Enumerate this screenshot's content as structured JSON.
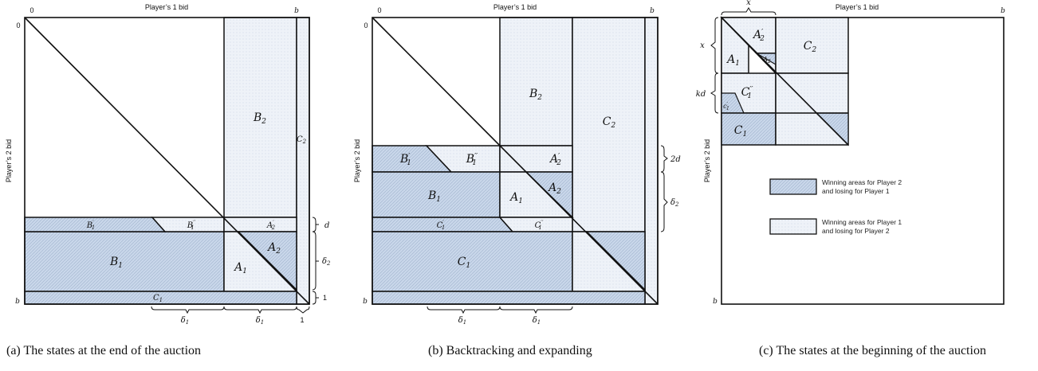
{
  "panels": [
    {
      "caption": "(a) The states at the end of the auction",
      "x_axis_label": "Player’s 1 bid",
      "y_axis_label": "Player’s 2 bid",
      "corner_zero_top": "0",
      "corner_b_top": "b",
      "corner_zero_left": "0",
      "corner_b_left": "b",
      "regions": {
        "B2": "B",
        "C2": "C",
        "B1p": "B",
        "B1pp": "B",
        "A2p": "A",
        "B1": "B",
        "A1": "A",
        "A2": "A",
        "C1": "C"
      },
      "subscripts": {
        "B2": "2",
        "C2": "2",
        "B1p": "1",
        "B1pp": "1",
        "A2p": "2",
        "B1": "1",
        "A1": "1",
        "A2": "2",
        "C1": "1"
      },
      "primes": {
        "B1p": "′",
        "B1pp": "′′",
        "A2p": "′"
      },
      "brace_labels": {
        "d": "d",
        "delta2": "δ",
        "delta2_sub": "2",
        "one_right": "1",
        "delta1_left": "δ",
        "delta1_right": "δ",
        "delta1_sub": "1",
        "one_bottom": "1"
      }
    },
    {
      "caption": "(b) Backtracking and expanding",
      "x_axis_label": "Player’s 1 bid",
      "y_axis_label": "Player’s 2 bid",
      "corner_zero_top": "0",
      "corner_b_top": "b",
      "corner_zero_left": "0",
      "corner_b_left": "b",
      "regions": {
        "B2": "B",
        "C2": "C",
        "B1p": "B",
        "B1pp": "B",
        "A2p": "A",
        "B1": "B",
        "A1": "A",
        "A2": "A",
        "C1p": "C",
        "C1pp": "C",
        "C1": "C"
      },
      "subscripts": {
        "B2": "2",
        "C2": "2",
        "B1p": "1",
        "B1pp": "1",
        "A2p": "2",
        "B1": "1",
        "A1": "1",
        "A2": "2",
        "C1p": "1",
        "C1pp": "1",
        "C1": "1"
      },
      "primes": {
        "B1p": "′",
        "B1pp": "′′",
        "A2p": "′",
        "C1p": "′",
        "C1pp": "′′"
      },
      "brace_labels": {
        "two_d": "2d",
        "delta2": "δ",
        "delta2_sub": "2",
        "delta1_left": "δ",
        "delta1_right": "δ",
        "delta1_sub": "1"
      }
    },
    {
      "caption": "(c) The states at the beginning of the auction",
      "x_axis_label": "Player’s 1 bid",
      "y_axis_label": "Player’s 2 bid",
      "corner_b_top": "b",
      "corner_b_left": "b",
      "regions": {
        "A2p": "A",
        "C2": "C",
        "A1": "A",
        "A2": "A",
        "C1pp": "C",
        "C1p": "c",
        "C1": "C"
      },
      "subscripts": {
        "A2p": "2",
        "C2": "2",
        "A1": "1",
        "A2": "2",
        "C1pp": "1",
        "C1p": "1",
        "C1": "1"
      },
      "primes": {
        "A2p": "′",
        "C1pp": "′′",
        "C1p": "′"
      },
      "brace_labels": {
        "x_top": "x",
        "x_left": "x",
        "kd": "kd"
      },
      "legend": [
        {
          "text_line1": "Winning areas for Player 2",
          "text_line2": "and losing for Player 1",
          "fill": "#c9d7ea"
        },
        {
          "text_line1": "Winning areas for Player 1",
          "text_line2": "and losing for Player 2",
          "fill": "#eef2f8"
        }
      ]
    }
  ],
  "colors": {
    "player2_win": "#c9d7ea",
    "player1_win": "#eef2f8",
    "stroke": "#111111"
  }
}
